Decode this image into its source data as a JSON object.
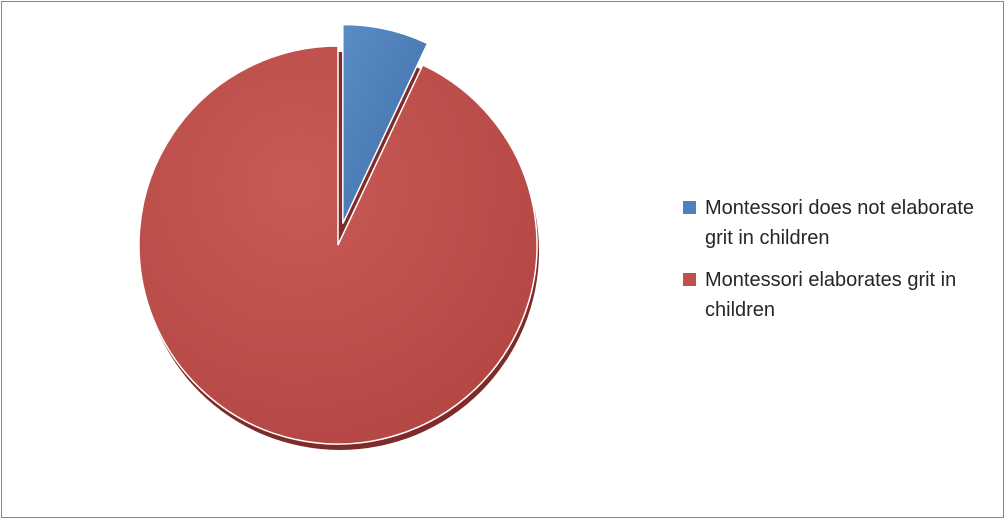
{
  "chart_data": {
    "type": "pie",
    "title": "",
    "slices": [
      {
        "label": "Montessori does not elaborate grit in children",
        "value": 7,
        "color": "#4F81BD"
      },
      {
        "label": "Montessori elaborates grit in children",
        "value": 93,
        "color": "#C0504D"
      }
    ],
    "exploded_slice": "Montessori does not elaborate grit in children",
    "legend_position": "right"
  }
}
